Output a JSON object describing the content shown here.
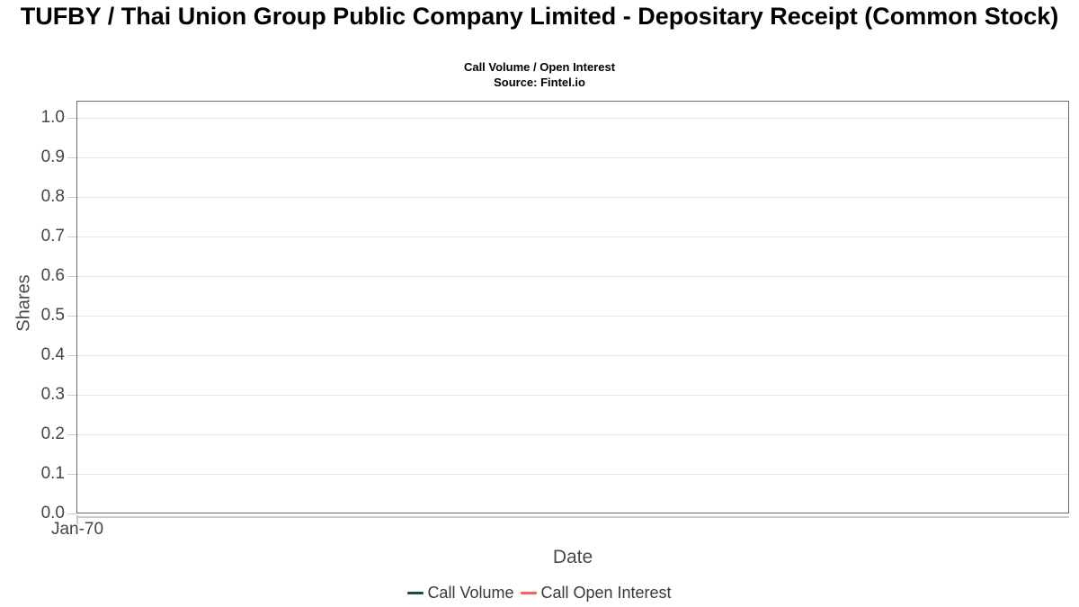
{
  "header": {
    "title": "TUFBY / Thai Union Group Public Company Limited - Depositary Receipt (Common Stock)",
    "subtitle": "Call Volume / Open Interest",
    "source": "Source: Fintel.io"
  },
  "chart_data": {
    "type": "line",
    "title": "TUFBY / Thai Union Group Public Company Limited - Depositary Receipt (Common Stock)",
    "subtitle": "Call Volume / Open Interest",
    "source": "Source: Fintel.io",
    "xlabel": "Date",
    "ylabel": "Shares",
    "ylim": [
      0,
      1.04
    ],
    "yticks": [
      0,
      0.1,
      0.2,
      0.3,
      0.4,
      0.5,
      0.6,
      0.7,
      0.8,
      0.9,
      1
    ],
    "ytick_labels": [
      "0.0",
      "0.1",
      "0.2",
      "0.3",
      "0.4",
      "0.5",
      "0.6",
      "0.7",
      "0.8",
      "0.9",
      "1.0"
    ],
    "xtick_labels": [
      "Jan-70"
    ],
    "grid": true,
    "legend_position": "bottom",
    "series": [
      {
        "name": "Call Volume",
        "color": "#1d4f38",
        "x": [],
        "values": []
      },
      {
        "name": "Call Open Interest",
        "color": "#f96060",
        "x": [],
        "values": []
      }
    ],
    "colors": {
      "gridline": "#e7e7e7",
      "plot_border": "#6a6a6a",
      "tick": "#cccccc",
      "tick_label": "#454545",
      "axis_title": "#4a4a4a",
      "legend_text": "#383838"
    }
  }
}
